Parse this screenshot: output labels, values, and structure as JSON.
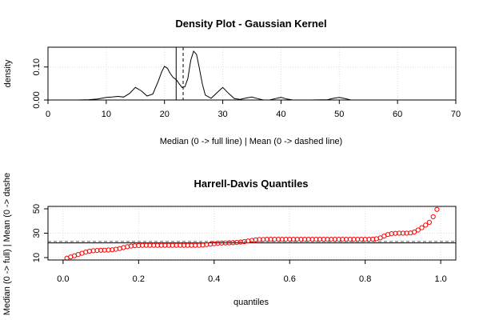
{
  "chart_data": [
    {
      "type": "line",
      "title": "Density Plot - Gaussian Kernel",
      "xlabel": "Median (0 -> full line) | Mean (0 -> dashed line)",
      "ylabel": "density",
      "xlim": [
        0,
        70
      ],
      "ylim": [
        0,
        0.16
      ],
      "x_ticks": [
        "0",
        "10",
        "20",
        "30",
        "40",
        "50",
        "60",
        "70"
      ],
      "y_ticks": [
        "0.00",
        "0.10"
      ],
      "grid": true,
      "series": [
        {
          "x": [
            2.5,
            5,
            7,
            8.5,
            10,
            11,
            12,
            13,
            14,
            15,
            16,
            17,
            18,
            19,
            19.5,
            20,
            20.5,
            21,
            21.5,
            22,
            22.5,
            23,
            23.5,
            24,
            24.5,
            25,
            25.5,
            26,
            26.5,
            27,
            28,
            29,
            30,
            31,
            32,
            33,
            34,
            35,
            36,
            37,
            38,
            39,
            40,
            41,
            42,
            45,
            48,
            49,
            50,
            51,
            52,
            55,
            60,
            65,
            67.5
          ],
          "y": [
            0.0,
            0.0,
            0.001,
            0.003,
            0.008,
            0.009,
            0.011,
            0.009,
            0.02,
            0.038,
            0.028,
            0.012,
            0.018,
            0.06,
            0.085,
            0.102,
            0.096,
            0.08,
            0.068,
            0.062,
            0.05,
            0.038,
            0.04,
            0.065,
            0.12,
            0.148,
            0.138,
            0.095,
            0.048,
            0.015,
            0.005,
            0.022,
            0.038,
            0.02,
            0.004,
            0.002,
            0.006,
            0.009,
            0.004,
            0.0,
            0.0,
            0.004,
            0.008,
            0.003,
            0.0,
            0.0,
            0.001,
            0.005,
            0.008,
            0.004,
            0.0,
            0.0,
            0.0,
            0.0,
            0.0
          ]
        }
      ],
      "median": 22,
      "mean": 23.2
    },
    {
      "type": "scatter",
      "title": "Harrell-Davis Quantiles",
      "xlabel": "quantiles",
      "ylabel": "Median (0 -> full) | Mean (0 -> dashe",
      "xlim": [
        -0.04,
        1.04
      ],
      "ylim": [
        8,
        52
      ],
      "x_ticks": [
        "0.0",
        "0.2",
        "0.4",
        "0.6",
        "0.8",
        "1.0"
      ],
      "y_ticks": [
        "10",
        "30",
        "50"
      ],
      "grid": true,
      "series": [
        {
          "x": [
            0.01,
            0.02,
            0.03,
            0.04,
            0.05,
            0.06,
            0.07,
            0.08,
            0.09,
            0.1,
            0.11,
            0.12,
            0.13,
            0.14,
            0.15,
            0.16,
            0.17,
            0.18,
            0.19,
            0.2,
            0.21,
            0.22,
            0.23,
            0.24,
            0.25,
            0.26,
            0.27,
            0.28,
            0.29,
            0.3,
            0.31,
            0.32,
            0.33,
            0.34,
            0.35,
            0.36,
            0.37,
            0.38,
            0.39,
            0.4,
            0.41,
            0.42,
            0.43,
            0.44,
            0.45,
            0.46,
            0.47,
            0.48,
            0.49,
            0.5,
            0.51,
            0.52,
            0.53,
            0.54,
            0.55,
            0.56,
            0.57,
            0.58,
            0.59,
            0.6,
            0.61,
            0.62,
            0.63,
            0.64,
            0.65,
            0.66,
            0.67,
            0.68,
            0.69,
            0.7,
            0.71,
            0.72,
            0.73,
            0.74,
            0.75,
            0.76,
            0.77,
            0.78,
            0.79,
            0.8,
            0.81,
            0.82,
            0.83,
            0.84,
            0.85,
            0.86,
            0.87,
            0.88,
            0.89,
            0.9,
            0.91,
            0.92,
            0.93,
            0.94,
            0.95,
            0.96,
            0.97,
            0.98,
            0.99
          ],
          "y": [
            9.5,
            10.5,
            11.5,
            12.5,
            13.5,
            14.5,
            15.2,
            15.6,
            15.8,
            16.0,
            16.1,
            16.2,
            16.4,
            16.8,
            17.4,
            18.2,
            18.9,
            19.4,
            19.7,
            19.9,
            20.0,
            20.0,
            20.0,
            20.0,
            20.0,
            20.0,
            20.0,
            20.0,
            20.0,
            20.0,
            20.0,
            20.0,
            20.0,
            20.0,
            20.0,
            20.1,
            20.3,
            20.6,
            21.0,
            21.4,
            21.7,
            21.9,
            22.0,
            22.1,
            22.2,
            22.4,
            22.7,
            23.1,
            23.6,
            24.1,
            24.5,
            24.8,
            24.9,
            25.0,
            25.0,
            25.0,
            25.0,
            25.0,
            25.0,
            25.0,
            25.0,
            25.0,
            25.0,
            25.0,
            25.0,
            25.0,
            25.0,
            25.0,
            25.0,
            25.0,
            25.0,
            25.0,
            25.0,
            25.0,
            25.0,
            25.0,
            25.0,
            25.0,
            25.0,
            25.0,
            25.0,
            25.1,
            25.4,
            26.2,
            27.6,
            28.9,
            29.6,
            29.9,
            30.0,
            30.0,
            30.0,
            30.2,
            31.0,
            32.6,
            34.5,
            36.6,
            38.9,
            43.5,
            49.5
          ]
        }
      ],
      "median": 22,
      "mean": 23.2
    }
  ]
}
